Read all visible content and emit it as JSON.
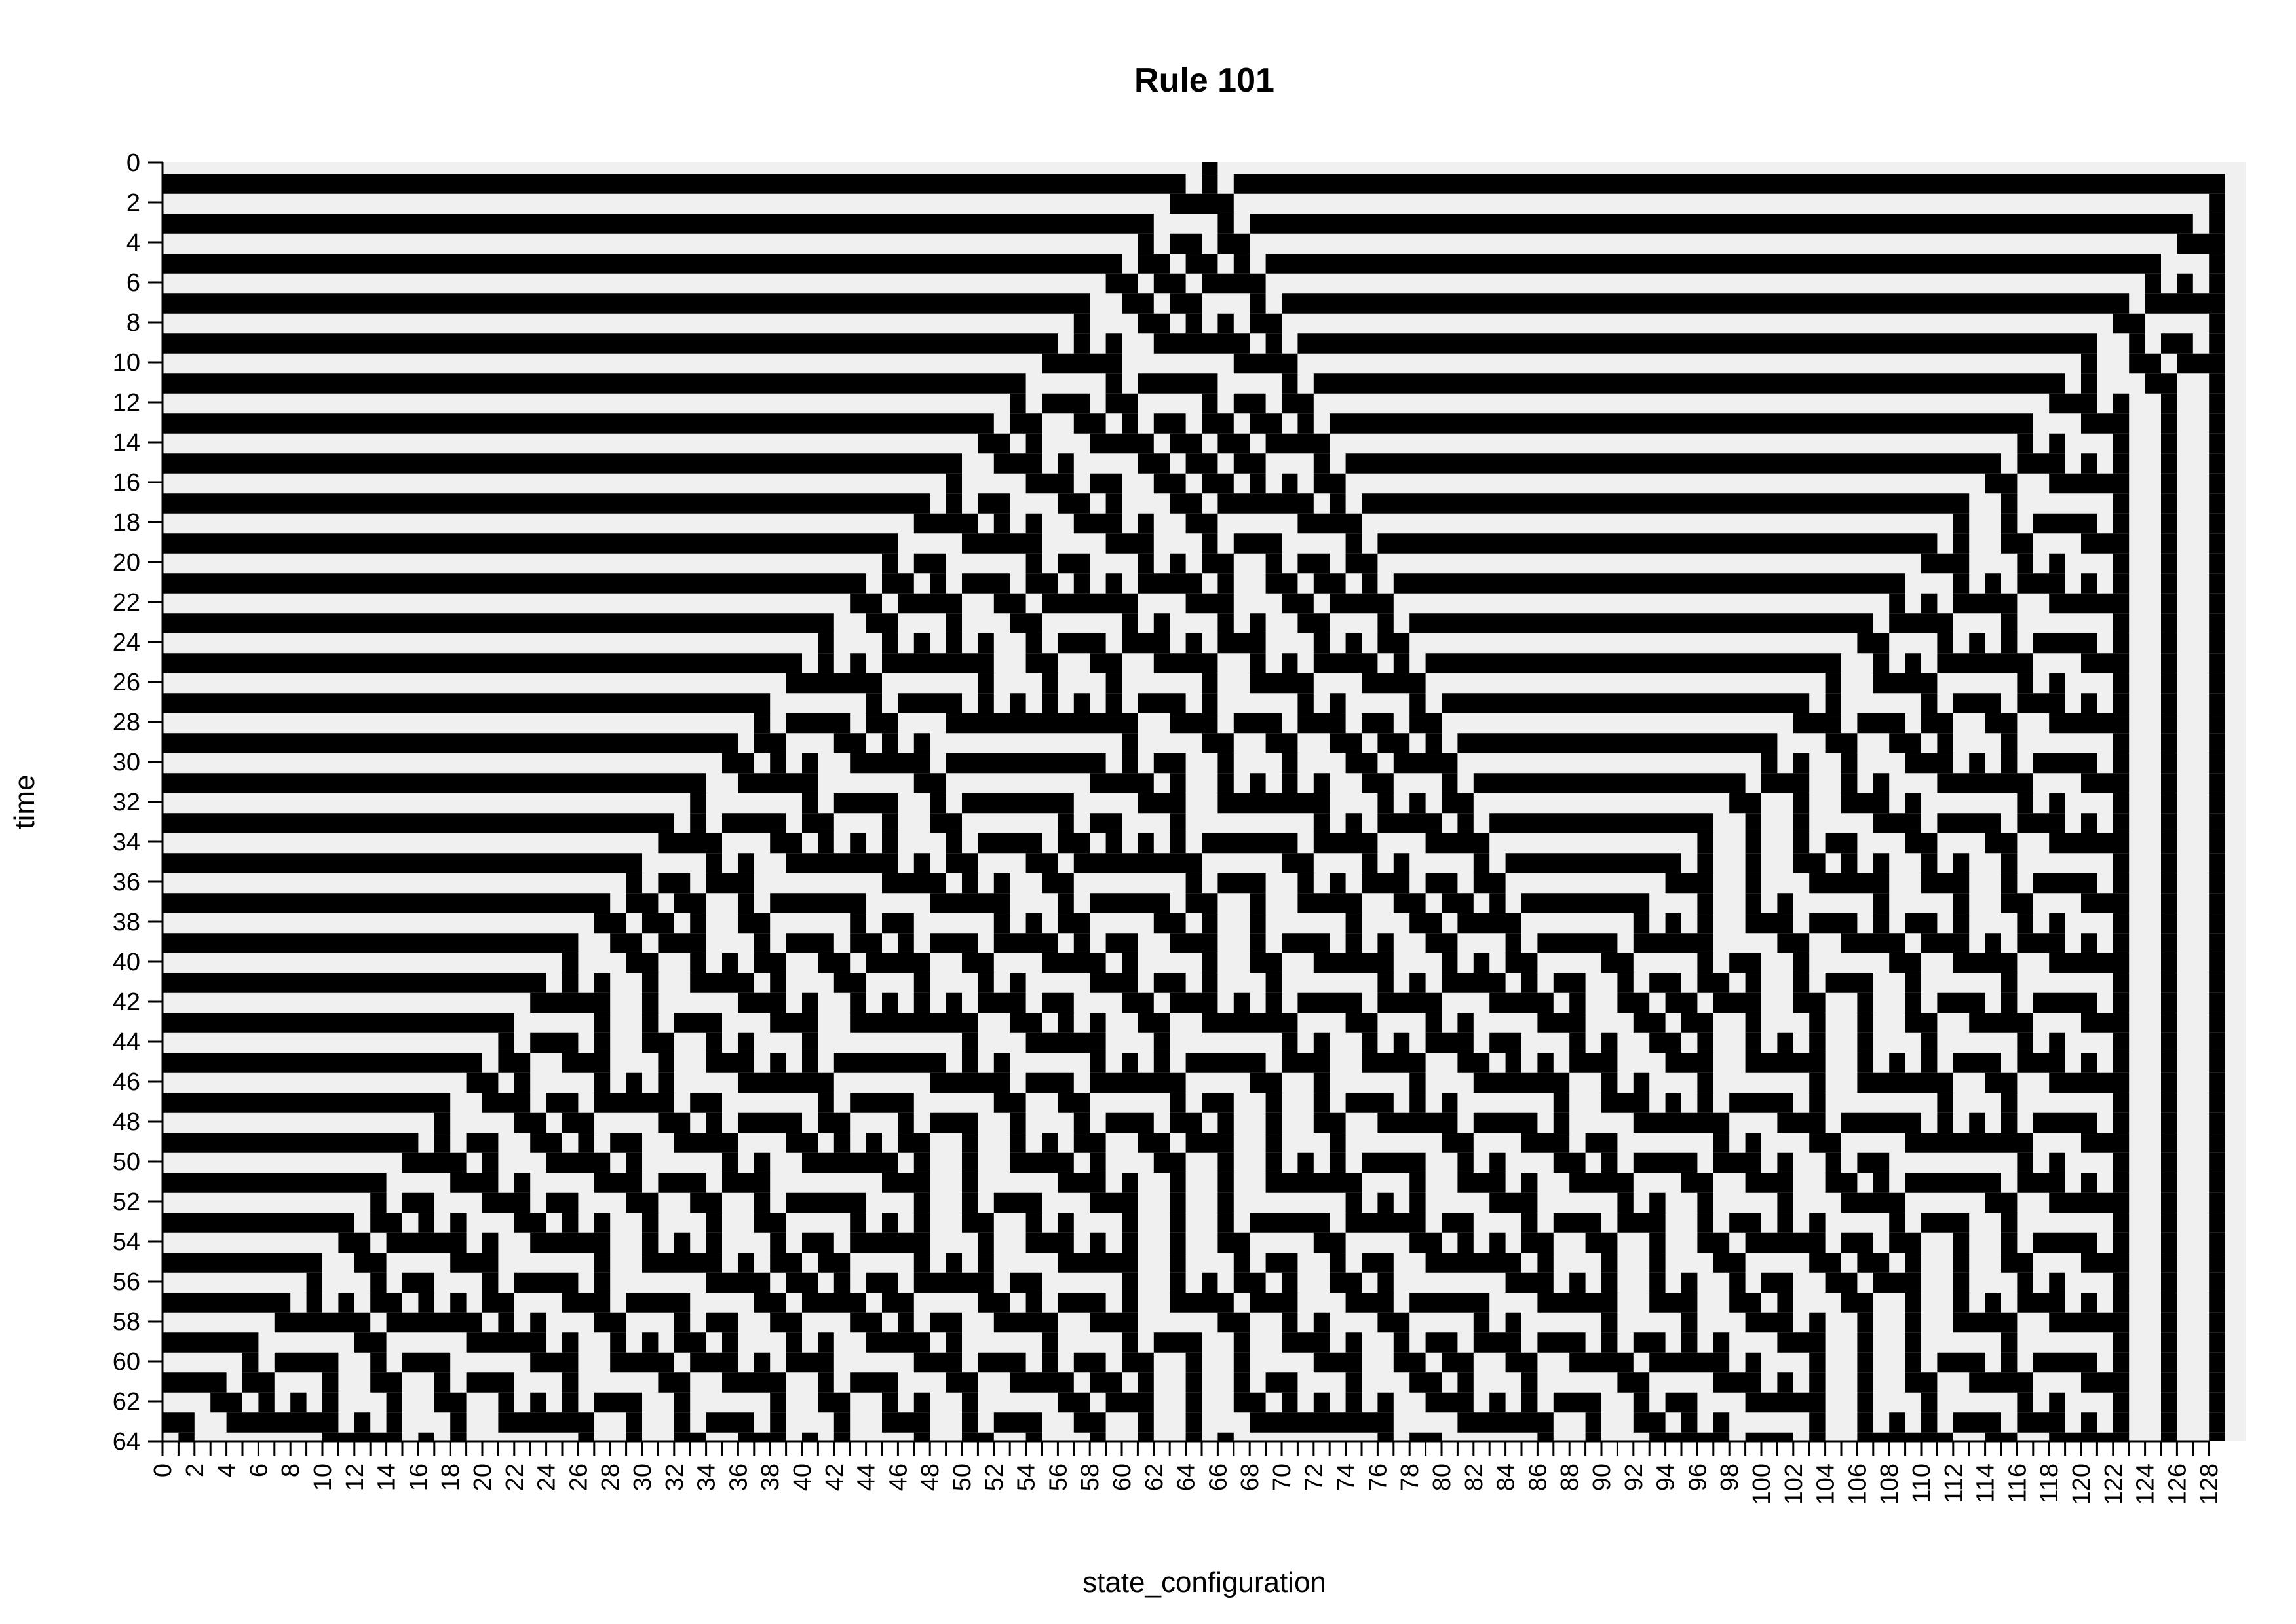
{
  "chart_data": {
    "type": "heatmap",
    "title": "Rule 101",
    "xlabel": "state_configuration",
    "ylabel": "time",
    "rule": 101,
    "width": 129,
    "steps": 64,
    "initial_state": "single live cell at x=65",
    "boundary": "fixed 0",
    "xlim": [
      0,
      128
    ],
    "ylim": [
      0,
      64
    ],
    "x_ticks": [
      0,
      2,
      4,
      6,
      8,
      10,
      12,
      14,
      16,
      18,
      20,
      22,
      24,
      26,
      28,
      30,
      32,
      34,
      36,
      38,
      40,
      42,
      44,
      46,
      48,
      50,
      52,
      54,
      56,
      58,
      60,
      62,
      64,
      66,
      68,
      70,
      72,
      74,
      76,
      78,
      80,
      82,
      84,
      86,
      88,
      90,
      92,
      94,
      96,
      98,
      100,
      102,
      104,
      106,
      108,
      110,
      112,
      114,
      116,
      118,
      120,
      122,
      124,
      126,
      128
    ],
    "y_ticks": [
      0,
      2,
      4,
      6,
      8,
      10,
      12,
      14,
      16,
      18,
      20,
      22,
      24,
      26,
      28,
      30,
      32,
      34,
      36,
      38,
      40,
      42,
      44,
      46,
      48,
      50,
      52,
      54,
      56,
      58,
      60,
      62,
      64
    ],
    "colors": {
      "on": "#000000",
      "off": "#f0f0f0",
      "background": "#ffffff"
    }
  }
}
